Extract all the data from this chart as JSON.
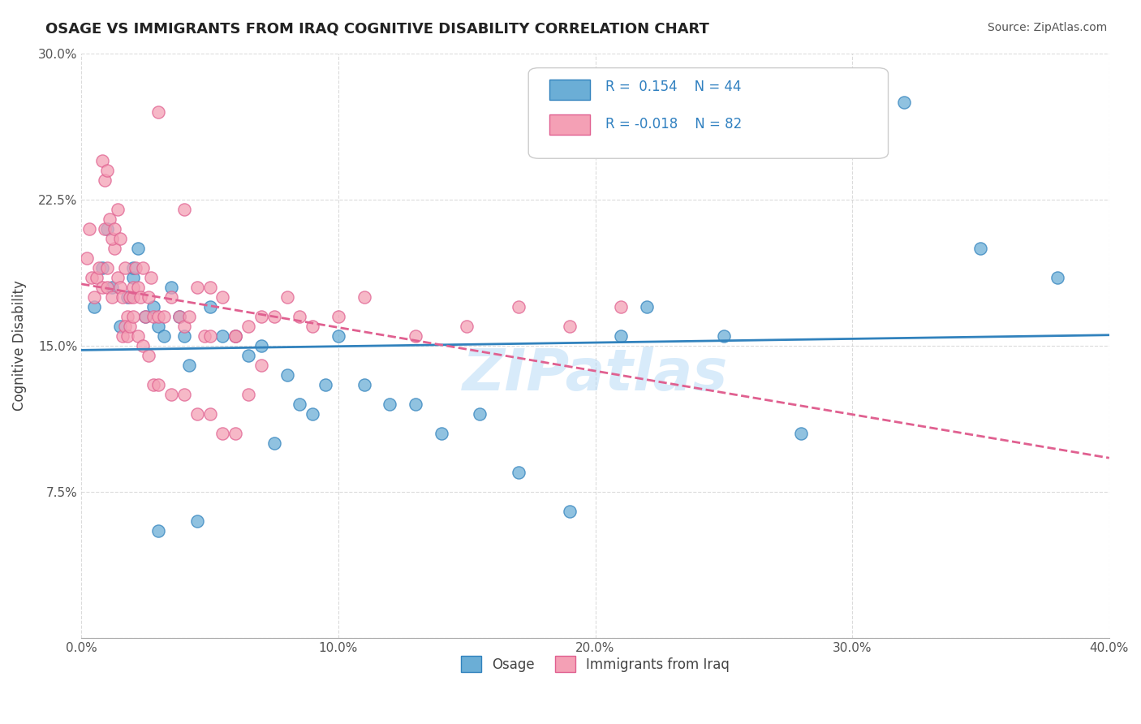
{
  "title": "OSAGE VS IMMIGRANTS FROM IRAQ COGNITIVE DISABILITY CORRELATION CHART",
  "source": "Source: ZipAtlas.com",
  "xlabel": "",
  "ylabel": "Cognitive Disability",
  "xlim": [
    0.0,
    0.4
  ],
  "ylim": [
    0.0,
    0.3
  ],
  "xticks": [
    0.0,
    0.1,
    0.2,
    0.3,
    0.4
  ],
  "yticks": [
    0.0,
    0.075,
    0.15,
    0.225,
    0.3
  ],
  "xticklabels": [
    "0.0%",
    "10.0%",
    "20.0%",
    "30.0%",
    "40.0%"
  ],
  "yticklabels": [
    "",
    "7.5%",
    "15.0%",
    "22.5%",
    "30.0%"
  ],
  "legend1_label": "Osage",
  "legend2_label": "Immigrants from Iraq",
  "R1": 0.154,
  "N1": 44,
  "R2": -0.018,
  "N2": 82,
  "color_blue": "#6baed6",
  "color_pink": "#f4a0b5",
  "line_blue": "#3182bd",
  "line_pink": "#e06090",
  "watermark": "ZIPatlas",
  "background_color": "#ffffff",
  "grid_color": "#cccccc",
  "osage_x": [
    0.005,
    0.008,
    0.01,
    0.012,
    0.015,
    0.018,
    0.02,
    0.02,
    0.022,
    0.025,
    0.028,
    0.03,
    0.032,
    0.035,
    0.038,
    0.04,
    0.042,
    0.05,
    0.055,
    0.06,
    0.065,
    0.07,
    0.075,
    0.08,
    0.085,
    0.09,
    0.095,
    0.1,
    0.11,
    0.12,
    0.13,
    0.14,
    0.155,
    0.17,
    0.19,
    0.21,
    0.22,
    0.25,
    0.28,
    0.32,
    0.35,
    0.38,
    0.03,
    0.045
  ],
  "osage_y": [
    0.17,
    0.19,
    0.21,
    0.18,
    0.16,
    0.175,
    0.185,
    0.19,
    0.2,
    0.165,
    0.17,
    0.16,
    0.155,
    0.18,
    0.165,
    0.155,
    0.14,
    0.17,
    0.155,
    0.155,
    0.145,
    0.15,
    0.1,
    0.135,
    0.12,
    0.115,
    0.13,
    0.155,
    0.13,
    0.12,
    0.12,
    0.105,
    0.115,
    0.085,
    0.065,
    0.155,
    0.17,
    0.155,
    0.105,
    0.275,
    0.2,
    0.185,
    0.055,
    0.06
  ],
  "iraq_x": [
    0.002,
    0.003,
    0.004,
    0.005,
    0.006,
    0.007,
    0.008,
    0.009,
    0.01,
    0.01,
    0.012,
    0.013,
    0.014,
    0.015,
    0.016,
    0.017,
    0.018,
    0.019,
    0.02,
    0.02,
    0.021,
    0.022,
    0.023,
    0.024,
    0.025,
    0.026,
    0.027,
    0.028,
    0.03,
    0.032,
    0.035,
    0.038,
    0.04,
    0.042,
    0.045,
    0.048,
    0.05,
    0.055,
    0.06,
    0.065,
    0.07,
    0.075,
    0.08,
    0.085,
    0.09,
    0.1,
    0.11,
    0.13,
    0.15,
    0.17,
    0.19,
    0.21,
    0.008,
    0.009,
    0.01,
    0.011,
    0.012,
    0.013,
    0.014,
    0.015,
    0.016,
    0.017,
    0.018,
    0.019,
    0.02,
    0.022,
    0.024,
    0.026,
    0.028,
    0.03,
    0.035,
    0.04,
    0.045,
    0.05,
    0.055,
    0.06,
    0.065,
    0.07,
    0.05,
    0.06,
    0.03,
    0.04
  ],
  "iraq_y": [
    0.195,
    0.21,
    0.185,
    0.175,
    0.185,
    0.19,
    0.18,
    0.21,
    0.19,
    0.18,
    0.175,
    0.2,
    0.185,
    0.18,
    0.175,
    0.19,
    0.165,
    0.175,
    0.175,
    0.18,
    0.19,
    0.18,
    0.175,
    0.19,
    0.165,
    0.175,
    0.185,
    0.165,
    0.165,
    0.165,
    0.175,
    0.165,
    0.16,
    0.165,
    0.18,
    0.155,
    0.18,
    0.175,
    0.155,
    0.16,
    0.165,
    0.165,
    0.175,
    0.165,
    0.16,
    0.165,
    0.175,
    0.155,
    0.16,
    0.17,
    0.16,
    0.17,
    0.245,
    0.235,
    0.24,
    0.215,
    0.205,
    0.21,
    0.22,
    0.205,
    0.155,
    0.16,
    0.155,
    0.16,
    0.165,
    0.155,
    0.15,
    0.145,
    0.13,
    0.13,
    0.125,
    0.125,
    0.115,
    0.115,
    0.105,
    0.105,
    0.125,
    0.14,
    0.155,
    0.155,
    0.27,
    0.22
  ]
}
